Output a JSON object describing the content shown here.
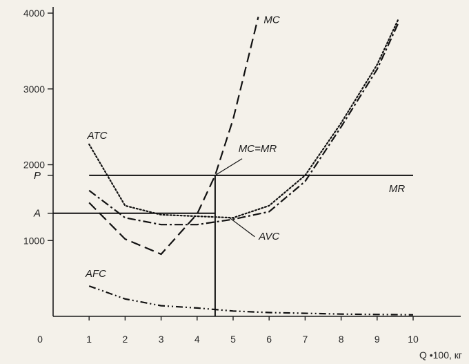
{
  "chart_data": {
    "type": "line",
    "title": "",
    "xlabel": "Q •100, кг",
    "ylabel": "",
    "xlim": [
      0,
      10
    ],
    "ylim": [
      0,
      4000
    ],
    "grid": false,
    "x_ticks": [
      "0",
      "1",
      "2",
      "3",
      "4",
      "5",
      "6",
      "7",
      "8",
      "9",
      "10"
    ],
    "y_ticks": [
      "1000",
      "2000",
      "3000",
      "4000"
    ],
    "y_markers": [
      {
        "label": "P",
        "value": 1860
      },
      {
        "label": "A",
        "value": 1360
      }
    ],
    "annotations": [
      "MC=MR"
    ],
    "intersection": {
      "x": 4.5,
      "y": 1860
    },
    "series": [
      {
        "name": "MC",
        "style": "dashed",
        "points": [
          [
            1,
            1500
          ],
          [
            2,
            1020
          ],
          [
            3,
            820
          ],
          [
            4,
            1350
          ],
          [
            4.5,
            1860
          ],
          [
            5,
            2600
          ],
          [
            5.7,
            3950
          ]
        ]
      },
      {
        "name": "ATC",
        "style": "dotted",
        "points": [
          [
            1,
            2270
          ],
          [
            2,
            1460
          ],
          [
            3,
            1340
          ],
          [
            4,
            1320
          ],
          [
            5,
            1300
          ],
          [
            6,
            1460
          ],
          [
            7,
            1860
          ],
          [
            8,
            2550
          ],
          [
            9,
            3320
          ],
          [
            9.6,
            3930
          ]
        ]
      },
      {
        "name": "AVC",
        "style": "dash-dot",
        "points": [
          [
            1,
            1660
          ],
          [
            2,
            1300
          ],
          [
            3,
            1210
          ],
          [
            4,
            1210
          ],
          [
            5,
            1280
          ],
          [
            6,
            1380
          ],
          [
            7,
            1780
          ],
          [
            8,
            2500
          ],
          [
            9,
            3260
          ],
          [
            9.6,
            3880
          ]
        ]
      },
      {
        "name": "AFC",
        "style": "dash-dot-dot",
        "points": [
          [
            1,
            400
          ],
          [
            2,
            230
          ],
          [
            3,
            140
          ],
          [
            4,
            110
          ],
          [
            5,
            70
          ],
          [
            6,
            50
          ],
          [
            7,
            40
          ],
          [
            8,
            30
          ],
          [
            9,
            25
          ],
          [
            10,
            20
          ]
        ]
      },
      {
        "name": "MR",
        "style": "solid",
        "points": [
          [
            1,
            1860
          ],
          [
            10,
            1860
          ]
        ]
      }
    ]
  }
}
